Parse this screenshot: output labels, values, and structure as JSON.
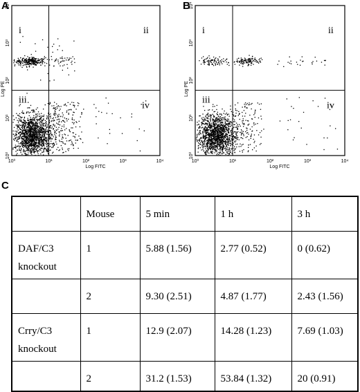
{
  "panels": {
    "A": "A",
    "B": "B",
    "C": "C"
  },
  "flow_plots": [
    {
      "id": "A",
      "x_label": "Log FITC",
      "y_label": "Log PE",
      "x_ticks": [
        "10⁰",
        "10¹",
        "10²",
        "10³",
        "10⁴"
      ],
      "y_ticks": [
        "10⁰",
        "10¹",
        "10²",
        "10³",
        "10⁴"
      ],
      "quadrants": [
        "i",
        "ii",
        "iii",
        "iv"
      ]
    },
    {
      "id": "B",
      "x_label": "Log FITC",
      "y_label": "Log PE",
      "x_ticks": [
        "10⁰",
        "10¹",
        "10²",
        "10³",
        "10⁴"
      ],
      "y_ticks": [
        "10⁰",
        "10¹",
        "10²",
        "10³",
        "10⁴"
      ],
      "quadrants": [
        "i",
        "ii",
        "iii",
        "iv"
      ]
    }
  ],
  "table": {
    "headers": [
      "",
      "Mouse",
      "5 min",
      "1 h",
      "3 h"
    ],
    "rows": [
      {
        "group": "DAF/C3 knockout",
        "mouse": "1",
        "min5": "5.88 (1.56)",
        "h1": "2.77 (0.52)",
        "h3": "0 (0.62)"
      },
      {
        "group": "",
        "mouse": "2",
        "min5": "9.30 (2.51)",
        "h1": "4.87 (1.77)",
        "h3": "2.43 (1.56)"
      },
      {
        "group": "Crry/C3 knockout",
        "mouse": "1",
        "min5": "12.9 (2.07)",
        "h1": "14.28 (1.23)",
        "h3": "7.69 (1.03)"
      },
      {
        "group": "",
        "mouse": "2",
        "min5": "31.2 (1.53)",
        "h1": "53.84 (1.32)",
        "h3": "20 (0.91)"
      }
    ]
  }
}
